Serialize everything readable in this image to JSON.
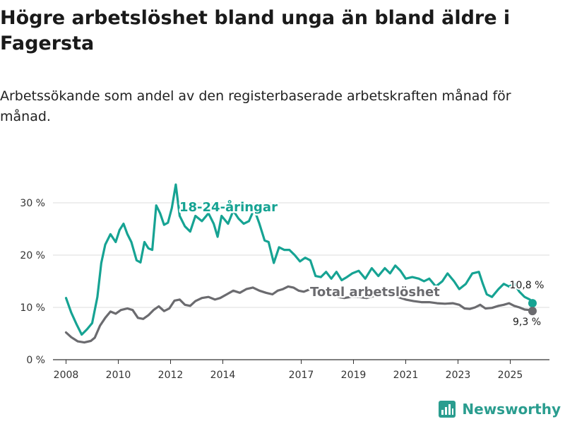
{
  "header": {
    "title": "Högre arbetslöshet bland unga än bland äldre i Fagersta",
    "subtitle": "Arbetssökande som andel av den registerbaserade arbetskraften månad för månad."
  },
  "brand": {
    "name": "Newsworthy"
  },
  "colors": {
    "youth": "#16a393",
    "total": "#6b6b6f",
    "axis": "#333333",
    "grid": "#dddddd"
  },
  "chart_data": {
    "type": "line",
    "title": "Högre arbetslöshet bland unga än bland äldre i Fagersta",
    "xlabel": "",
    "ylabel": "",
    "xlim": [
      2007.5,
      2026.5
    ],
    "ylim": [
      0,
      35
    ],
    "y_ticks": [
      0,
      10,
      20,
      30
    ],
    "y_tick_labels": [
      "0 %",
      "10 %",
      "20 %",
      "30 %"
    ],
    "x_ticks": [
      2008,
      2010,
      2012,
      2014,
      2017,
      2019,
      2021,
      2023,
      2025
    ],
    "x_tick_labels": [
      "2008",
      "2010",
      "2012",
      "2014",
      "2017",
      "2019",
      "2021",
      "2023",
      "2025"
    ],
    "series": [
      {
        "name": "18-24-åringar",
        "label": "18-24-åringar",
        "end_label": "10,8 %",
        "points": [
          [
            2008.0,
            11.8
          ],
          [
            2008.2,
            9.0
          ],
          [
            2008.4,
            6.8
          ],
          [
            2008.6,
            4.8
          ],
          [
            2008.8,
            5.8
          ],
          [
            2009.0,
            7.0
          ],
          [
            2009.2,
            12.0
          ],
          [
            2009.35,
            18.5
          ],
          [
            2009.5,
            22.0
          ],
          [
            2009.7,
            24.0
          ],
          [
            2009.9,
            22.5
          ],
          [
            2010.05,
            24.8
          ],
          [
            2010.2,
            26.0
          ],
          [
            2010.35,
            24.0
          ],
          [
            2010.5,
            22.5
          ],
          [
            2010.7,
            19.0
          ],
          [
            2010.85,
            18.6
          ],
          [
            2011.0,
            22.5
          ],
          [
            2011.15,
            21.3
          ],
          [
            2011.3,
            21.0
          ],
          [
            2011.45,
            29.5
          ],
          [
            2011.6,
            28.0
          ],
          [
            2011.75,
            25.8
          ],
          [
            2011.9,
            26.2
          ],
          [
            2012.05,
            29.0
          ],
          [
            2012.2,
            33.5
          ],
          [
            2012.35,
            27.5
          ],
          [
            2012.55,
            25.5
          ],
          [
            2012.75,
            24.5
          ],
          [
            2012.95,
            27.5
          ],
          [
            2013.2,
            26.5
          ],
          [
            2013.45,
            28.0
          ],
          [
            2013.65,
            26.0
          ],
          [
            2013.8,
            23.5
          ],
          [
            2013.95,
            27.5
          ],
          [
            2014.2,
            26.0
          ],
          [
            2014.4,
            28.5
          ],
          [
            2014.6,
            27.0
          ],
          [
            2014.8,
            26.0
          ],
          [
            2015.0,
            26.5
          ],
          [
            2015.2,
            28.8
          ],
          [
            2015.4,
            26.0
          ],
          [
            2015.6,
            22.8
          ],
          [
            2015.75,
            22.5
          ],
          [
            2015.95,
            18.5
          ],
          [
            2016.15,
            21.5
          ],
          [
            2016.35,
            21.0
          ],
          [
            2016.55,
            21.0
          ],
          [
            2016.75,
            20.0
          ],
          [
            2016.95,
            18.8
          ],
          [
            2017.15,
            19.5
          ],
          [
            2017.35,
            19.0
          ],
          [
            2017.55,
            16.0
          ],
          [
            2017.75,
            15.8
          ],
          [
            2017.95,
            16.8
          ],
          [
            2018.15,
            15.5
          ],
          [
            2018.35,
            16.8
          ],
          [
            2018.55,
            15.2
          ],
          [
            2018.75,
            15.8
          ],
          [
            2018.95,
            16.5
          ],
          [
            2019.2,
            17.0
          ],
          [
            2019.45,
            15.5
          ],
          [
            2019.7,
            17.5
          ],
          [
            2019.95,
            16.0
          ],
          [
            2020.2,
            17.5
          ],
          [
            2020.4,
            16.5
          ],
          [
            2020.6,
            18.0
          ],
          [
            2020.8,
            17.0
          ],
          [
            2021.0,
            15.5
          ],
          [
            2021.25,
            15.8
          ],
          [
            2021.5,
            15.5
          ],
          [
            2021.7,
            15.0
          ],
          [
            2021.9,
            15.5
          ],
          [
            2022.15,
            14.0
          ],
          [
            2022.4,
            15.0
          ],
          [
            2022.6,
            16.5
          ],
          [
            2022.85,
            15.0
          ],
          [
            2023.05,
            13.5
          ],
          [
            2023.3,
            14.5
          ],
          [
            2023.55,
            16.5
          ],
          [
            2023.8,
            16.8
          ],
          [
            2023.95,
            14.5
          ],
          [
            2024.1,
            12.5
          ],
          [
            2024.3,
            12.0
          ],
          [
            2024.55,
            13.5
          ],
          [
            2024.75,
            14.5
          ],
          [
            2024.95,
            14.0
          ],
          [
            2025.15,
            14.5
          ],
          [
            2025.35,
            13.0
          ],
          [
            2025.55,
            12.0
          ],
          [
            2025.75,
            11.5
          ],
          [
            2025.85,
            10.8
          ]
        ]
      },
      {
        "name": "Total arbetslöshet",
        "label": "Total arbetslöshet",
        "end_label": "9,3 %",
        "points": [
          [
            2008.0,
            5.2
          ],
          [
            2008.2,
            4.3
          ],
          [
            2008.45,
            3.5
          ],
          [
            2008.7,
            3.3
          ],
          [
            2008.95,
            3.6
          ],
          [
            2009.1,
            4.2
          ],
          [
            2009.3,
            6.5
          ],
          [
            2009.5,
            8.0
          ],
          [
            2009.7,
            9.2
          ],
          [
            2009.9,
            8.8
          ],
          [
            2010.1,
            9.5
          ],
          [
            2010.35,
            9.8
          ],
          [
            2010.55,
            9.5
          ],
          [
            2010.75,
            8.0
          ],
          [
            2010.95,
            7.8
          ],
          [
            2011.15,
            8.5
          ],
          [
            2011.35,
            9.5
          ],
          [
            2011.55,
            10.2
          ],
          [
            2011.75,
            9.3
          ],
          [
            2011.95,
            9.8
          ],
          [
            2012.15,
            11.3
          ],
          [
            2012.35,
            11.5
          ],
          [
            2012.55,
            10.5
          ],
          [
            2012.75,
            10.3
          ],
          [
            2012.95,
            11.2
          ],
          [
            2013.2,
            11.8
          ],
          [
            2013.45,
            12.0
          ],
          [
            2013.7,
            11.5
          ],
          [
            2013.9,
            11.8
          ],
          [
            2014.15,
            12.5
          ],
          [
            2014.4,
            13.2
          ],
          [
            2014.65,
            12.8
          ],
          [
            2014.9,
            13.5
          ],
          [
            2015.15,
            13.8
          ],
          [
            2015.4,
            13.2
          ],
          [
            2015.65,
            12.8
          ],
          [
            2015.9,
            12.5
          ],
          [
            2016.1,
            13.2
          ],
          [
            2016.3,
            13.5
          ],
          [
            2016.5,
            14.0
          ],
          [
            2016.7,
            13.8
          ],
          [
            2016.9,
            13.2
          ],
          [
            2017.1,
            13.0
          ],
          [
            2017.35,
            13.5
          ],
          [
            2017.6,
            13.2
          ],
          [
            2017.85,
            13.0
          ],
          [
            2018.15,
            12.5
          ],
          [
            2018.4,
            12.0
          ],
          [
            2018.65,
            11.8
          ],
          [
            2018.9,
            12.0
          ],
          [
            2019.2,
            12.0
          ],
          [
            2019.5,
            11.8
          ],
          [
            2019.8,
            12.2
          ],
          [
            2020.1,
            12.5
          ],
          [
            2020.4,
            12.5
          ],
          [
            2020.7,
            12.0
          ],
          [
            2021.0,
            11.5
          ],
          [
            2021.3,
            11.2
          ],
          [
            2021.6,
            11.0
          ],
          [
            2021.9,
            11.0
          ],
          [
            2022.2,
            10.8
          ],
          [
            2022.5,
            10.7
          ],
          [
            2022.8,
            10.8
          ],
          [
            2023.05,
            10.5
          ],
          [
            2023.25,
            9.8
          ],
          [
            2023.45,
            9.7
          ],
          [
            2023.65,
            10.0
          ],
          [
            2023.85,
            10.5
          ],
          [
            2024.05,
            9.8
          ],
          [
            2024.3,
            9.9
          ],
          [
            2024.55,
            10.3
          ],
          [
            2024.75,
            10.5
          ],
          [
            2024.95,
            10.8
          ],
          [
            2025.15,
            10.3
          ],
          [
            2025.35,
            10.0
          ],
          [
            2025.55,
            9.6
          ],
          [
            2025.75,
            9.5
          ],
          [
            2025.85,
            9.3
          ]
        ]
      }
    ]
  }
}
